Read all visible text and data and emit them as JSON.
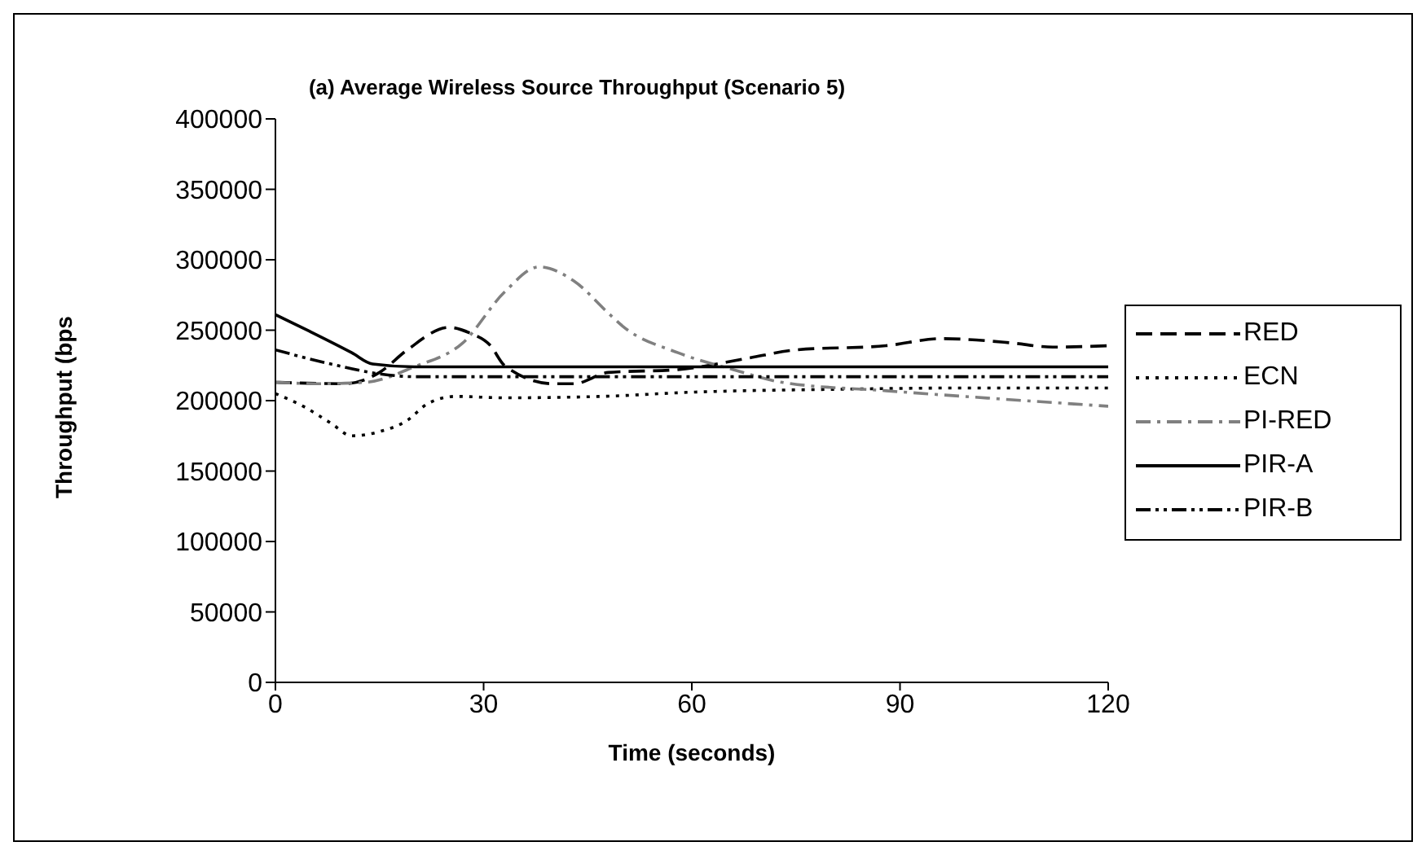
{
  "chart_data": {
    "type": "line",
    "title": "(a) Average Wireless Source Throughput (Scenario 5)",
    "xlabel": "Time (seconds)",
    "ylabel": "Throughput (bps",
    "xlim": [
      0,
      120
    ],
    "xticks": [
      0,
      30,
      60,
      90,
      120
    ],
    "ylim": [
      0,
      400000
    ],
    "yticks": [
      0,
      50000,
      100000,
      150000,
      200000,
      250000,
      300000,
      350000,
      400000
    ],
    "grid": false,
    "legend": "right",
    "marker": "none",
    "series": [
      {
        "name": "RED",
        "color": "#000000",
        "line_style": "dashed",
        "x": [
          0,
          10,
          15,
          19,
          25,
          28,
          31,
          33,
          40,
          43,
          48,
          58,
          68,
          75,
          88,
          96,
          106,
          112,
          120
        ],
        "values": [
          213000,
          212000,
          220000,
          236000,
          252000,
          248000,
          239000,
          225000,
          212000,
          212000,
          220000,
          222000,
          230000,
          236000,
          239000,
          244000,
          241000,
          238000,
          239000
        ]
      },
      {
        "name": "ECN",
        "color": "#000000",
        "line_style": "dotted",
        "x": [
          0,
          4,
          8,
          11,
          15,
          19,
          22,
          26,
          33,
          47,
          60,
          80,
          100,
          120
        ],
        "values": [
          205000,
          196000,
          184000,
          175000,
          178000,
          186000,
          198000,
          203000,
          202000,
          203000,
          206000,
          208000,
          209000,
          209000
        ]
      },
      {
        "name": "PI-RED",
        "color": "#808080",
        "line_style": "dashdot",
        "x": [
          0,
          6.5,
          13,
          20,
          27,
          33,
          38,
          43,
          48,
          50,
          58,
          66,
          73,
          88,
          105,
          120
        ],
        "values": [
          213000,
          212000,
          213000,
          224000,
          241000,
          277000,
          295000,
          285000,
          262000,
          253000,
          234000,
          222000,
          213000,
          207000,
          201000,
          196000
        ]
      },
      {
        "name": "PIR-A",
        "color": "#000000",
        "line_style": "solid",
        "x": [
          0,
          5,
          11,
          14,
          20,
          60,
          120
        ],
        "values": [
          261000,
          249000,
          234000,
          226000,
          224000,
          224000,
          224000
        ]
      },
      {
        "name": "PIR-B",
        "color": "#000000",
        "line_style": "dashdotdot",
        "x": [
          0,
          8,
          15,
          20,
          60,
          120
        ],
        "values": [
          236000,
          226000,
          219000,
          217000,
          217000,
          217000
        ]
      }
    ]
  }
}
